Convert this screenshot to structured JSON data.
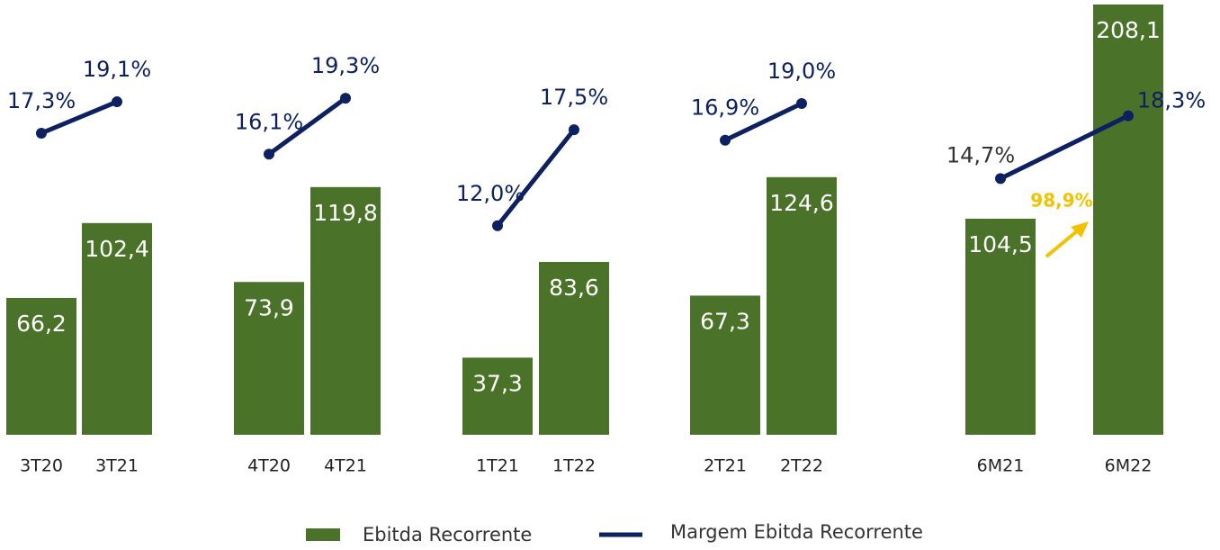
{
  "chart_data": {
    "type": "bar",
    "categories": [
      "3T20",
      "3T21",
      "4T20",
      "4T21",
      "1T21",
      "1T22",
      "2T21",
      "2T22",
      "6M21",
      "6M22"
    ],
    "series": [
      {
        "name": "Ebitda Recorrente",
        "color": "#4a7329",
        "values": [
          66.2,
          102.4,
          73.9,
          119.8,
          37.3,
          83.6,
          67.3,
          124.6,
          104.5,
          208.1
        ],
        "value_labels": [
          "66,2",
          "102,4",
          "73,9",
          "119,8",
          "37,3",
          "83,6",
          "67,3",
          "124,6",
          "104,5",
          "208,1"
        ]
      },
      {
        "name": "Margem Ebitda Recorrente",
        "color": "#0d2160",
        "type": "line",
        "values": [
          17.3,
          19.1,
          16.1,
          19.3,
          12.0,
          17.5,
          16.9,
          19.0,
          14.7,
          18.3
        ],
        "value_labels": [
          "17,3%",
          "19,1%",
          "16,1%",
          "19,3%",
          "12,0%",
          "17,5%",
          "16,9%",
          "19,0%",
          "14,7%",
          "18,3%"
        ]
      }
    ],
    "annotations": [
      {
        "text": "98,9%",
        "color": "#f2c200"
      }
    ]
  }
}
